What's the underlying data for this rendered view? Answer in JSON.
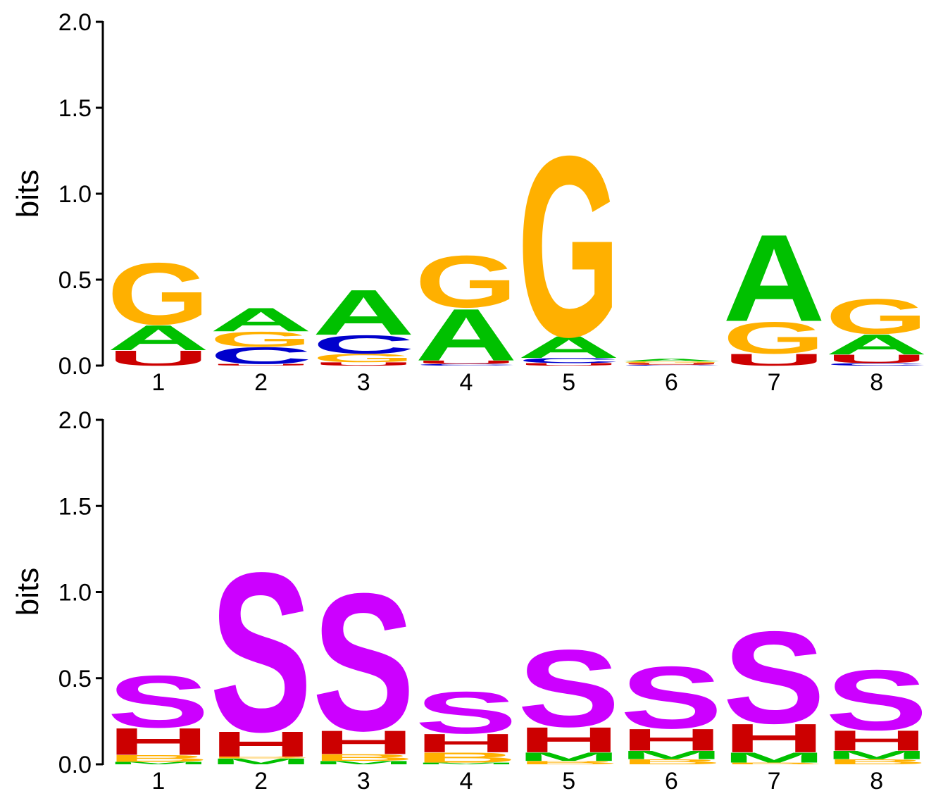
{
  "chart_data": [
    {
      "type": "sequence-logo",
      "ylabel": "bits",
      "ylim": [
        0,
        2.0
      ],
      "yticks": [
        "0.0",
        "0.5",
        "1.0",
        "1.5",
        "2.0"
      ],
      "positions": [
        "1",
        "2",
        "3",
        "4",
        "5",
        "6",
        "7",
        "8"
      ],
      "colors": {
        "A": "#00c000",
        "C": "#0000cc",
        "G": "#ffb000",
        "U": "#cc0000"
      },
      "stacks": [
        [
          {
            "letter": "U",
            "bits": 0.09
          },
          {
            "letter": "A",
            "bits": 0.15
          },
          {
            "letter": "G",
            "bits": 0.37
          }
        ],
        [
          {
            "letter": "U",
            "bits": 0.01
          },
          {
            "letter": "C",
            "bits": 0.1
          },
          {
            "letter": "G",
            "bits": 0.09
          },
          {
            "letter": "A",
            "bits": 0.14
          }
        ],
        [
          {
            "letter": "U",
            "bits": 0.02
          },
          {
            "letter": "G",
            "bits": 0.05
          },
          {
            "letter": "C",
            "bits": 0.11
          },
          {
            "letter": "A",
            "bits": 0.27
          }
        ],
        [
          {
            "letter": "C",
            "bits": 0.01
          },
          {
            "letter": "U",
            "bits": 0.02
          },
          {
            "letter": "A",
            "bits": 0.31
          },
          {
            "letter": "G",
            "bits": 0.31
          }
        ],
        [
          {
            "letter": "U",
            "bits": 0.015
          },
          {
            "letter": "C",
            "bits": 0.03
          },
          {
            "letter": "A",
            "bits": 0.13
          },
          {
            "letter": "G",
            "bits": 1.08
          }
        ],
        [
          {
            "letter": "C",
            "bits": 0.005
          },
          {
            "letter": "U",
            "bits": 0.01
          },
          {
            "letter": "G",
            "bits": 0.01
          },
          {
            "letter": "A",
            "bits": 0.015
          }
        ],
        [
          {
            "letter": "U",
            "bits": 0.07
          },
          {
            "letter": "G",
            "bits": 0.19
          },
          {
            "letter": "A",
            "bits": 0.52
          }
        ],
        [
          {
            "letter": "C",
            "bits": 0.015
          },
          {
            "letter": "U",
            "bits": 0.05
          },
          {
            "letter": "A",
            "bits": 0.12
          },
          {
            "letter": "G",
            "bits": 0.21
          }
        ]
      ]
    },
    {
      "type": "sequence-logo",
      "ylabel": "bits",
      "ylim": [
        0,
        2.0
      ],
      "yticks": [
        "0.0",
        "0.5",
        "1.0",
        "1.5",
        "2.0"
      ],
      "positions": [
        "1",
        "2",
        "3",
        "4",
        "5",
        "6",
        "7",
        "8"
      ],
      "colors": {
        "S": "#cc00ff",
        "H": "#cc0000",
        "B": "#ffb000",
        "M": "#00c000"
      },
      "stacks": [
        [
          {
            "letter": "M",
            "bits": 0.015
          },
          {
            "letter": "B",
            "bits": 0.04
          },
          {
            "letter": "H",
            "bits": 0.16
          },
          {
            "letter": "S",
            "bits": 0.31
          }
        ],
        [
          {
            "letter": "M",
            "bits": 0.035
          },
          {
            "letter": "B",
            "bits": 0.01
          },
          {
            "letter": "H",
            "bits": 0.15
          },
          {
            "letter": "S",
            "bits": 0.95
          }
        ],
        [
          {
            "letter": "M",
            "bits": 0.02
          },
          {
            "letter": "B",
            "bits": 0.04
          },
          {
            "letter": "H",
            "bits": 0.14
          },
          {
            "letter": "S",
            "bits": 0.82
          }
        ],
        [
          {
            "letter": "M",
            "bits": 0.01
          },
          {
            "letter": "B",
            "bits": 0.06
          },
          {
            "letter": "H",
            "bits": 0.11
          },
          {
            "letter": "S",
            "bits": 0.25
          }
        ],
        [
          {
            "letter": "B",
            "bits": 0.02
          },
          {
            "letter": "M",
            "bits": 0.05
          },
          {
            "letter": "H",
            "bits": 0.15
          },
          {
            "letter": "S",
            "bits": 0.46
          }
        ],
        [
          {
            "letter": "B",
            "bits": 0.03
          },
          {
            "letter": "M",
            "bits": 0.05
          },
          {
            "letter": "H",
            "bits": 0.13
          },
          {
            "letter": "S",
            "bits": 0.37
          }
        ],
        [
          {
            "letter": "B",
            "bits": 0.01
          },
          {
            "letter": "M",
            "bits": 0.06
          },
          {
            "letter": "H",
            "bits": 0.17
          },
          {
            "letter": "S",
            "bits": 0.55
          }
        ],
        [
          {
            "letter": "B",
            "bits": 0.03
          },
          {
            "letter": "M",
            "bits": 0.05
          },
          {
            "letter": "H",
            "bits": 0.12
          },
          {
            "letter": "S",
            "bits": 0.36
          }
        ]
      ]
    }
  ]
}
